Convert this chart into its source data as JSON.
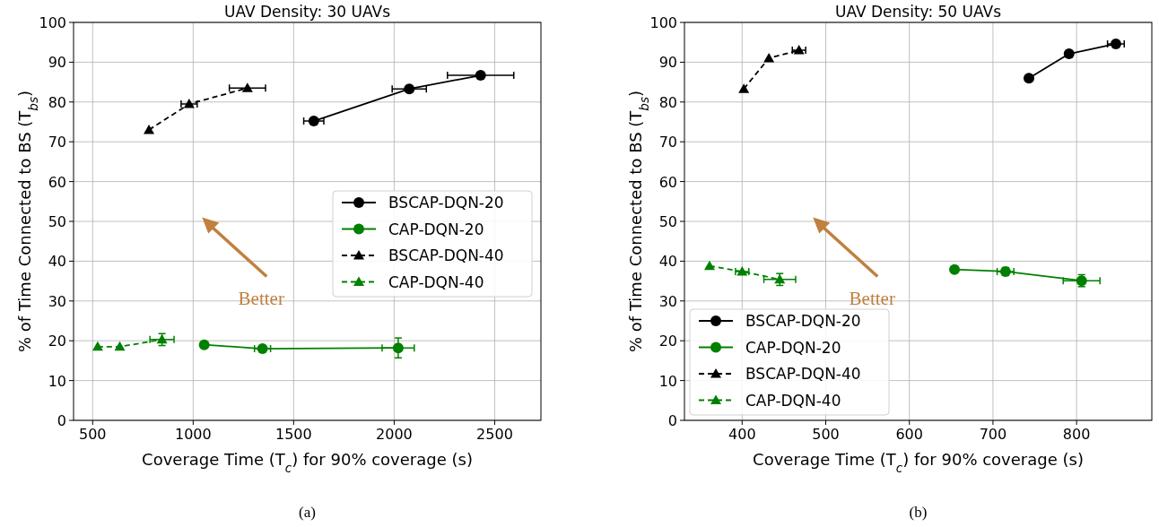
{
  "chart_data": [
    {
      "type": "line",
      "title": "UAV Density: 30 UAVs",
      "xlabel": "Coverage Time (T$_{c}$) for 90% coverage (s)",
      "ylabel": "% of Time Connected to BS (T$_{bs}$)",
      "xlim": [
        405,
        2730
      ],
      "ylim": [
        0,
        100
      ],
      "xticks": [
        500,
        1000,
        1500,
        2000,
        2500
      ],
      "yticks": [
        0,
        10,
        20,
        30,
        40,
        50,
        60,
        70,
        80,
        90,
        100
      ],
      "grid": true,
      "legend": "right",
      "annotations": [
        "Better",
        "(a)"
      ],
      "series": [
        {
          "name": "BSCAP-DQN-20",
          "color": "#000000",
          "marker": "circle",
          "line_style": "solid",
          "x": [
            1600,
            2075,
            2430
          ],
          "values": [
            75.2,
            83.3,
            86.7
          ],
          "xerrors": [
            50,
            85,
            165
          ]
        },
        {
          "name": "CAP-DQN-20",
          "color": "#008000",
          "marker": "circle",
          "line_style": "solid",
          "x": [
            1055,
            1345,
            2020
          ],
          "values": [
            19,
            18,
            18.2
          ],
          "xerrors": [
            null,
            40,
            80
          ],
          "errors": [
            null,
            null,
            2.5
          ]
        },
        {
          "name": "BSCAP-DQN-40",
          "color": "#000000",
          "marker": "triangle",
          "line_style": "dashed",
          "x": [
            780,
            980,
            1270
          ],
          "values": [
            73,
            79.5,
            83.5
          ],
          "xerrors": [
            null,
            40,
            90
          ]
        },
        {
          "name": "CAP-DQN-40",
          "color": "#008000",
          "marker": "triangle",
          "line_style": "dashed",
          "x": [
            525,
            635,
            845
          ],
          "values": [
            18.5,
            18.5,
            20.3
          ],
          "xerrors": [
            null,
            null,
            60
          ],
          "errors": [
            null,
            null,
            1.5
          ]
        }
      ]
    },
    {
      "type": "line",
      "title": "UAV Density: 50 UAVs",
      "xlabel": "Coverage Time (T$_{c}$) for 90% coverage (s)",
      "ylabel": "% of Time Connected to BS (T$_{bs}$)",
      "xlim": [
        331,
        890
      ],
      "ylim": [
        0,
        100
      ],
      "xticks": [
        400,
        500,
        600,
        700,
        800
      ],
      "yticks": [
        0,
        10,
        20,
        30,
        40,
        50,
        60,
        70,
        80,
        90,
        100
      ],
      "grid": true,
      "legend": "bottom left",
      "annotations": [
        "Better",
        "(b)"
      ],
      "series": [
        {
          "name": "BSCAP-DQN-20",
          "color": "#000000",
          "marker": "circle",
          "line_style": "solid",
          "x": [
            743,
            791,
            847
          ],
          "values": [
            86,
            92.1,
            94.6
          ],
          "xerrors": [
            null,
            null,
            10
          ]
        },
        {
          "name": "CAP-DQN-20",
          "color": "#008000",
          "marker": "circle",
          "line_style": "solid",
          "x": [
            654,
            715,
            806
          ],
          "values": [
            37.9,
            37.4,
            35.1
          ],
          "xerrors": [
            null,
            10,
            22
          ],
          "errors": [
            null,
            1,
            1.5
          ]
        },
        {
          "name": "BSCAP-DQN-40",
          "color": "#000000",
          "marker": "triangle",
          "line_style": "dashed",
          "x": [
            402,
            432,
            468
          ],
          "values": [
            83.3,
            91,
            93
          ],
          "xerrors": [
            null,
            null,
            8
          ]
        },
        {
          "name": "CAP-DQN-40",
          "color": "#008000",
          "marker": "triangle",
          "line_style": "dashed",
          "x": [
            361,
            400,
            445
          ],
          "values": [
            38.8,
            37.4,
            35.4
          ],
          "xerrors": [
            null,
            8,
            19
          ],
          "errors": [
            null,
            null,
            1.5
          ]
        }
      ]
    }
  ]
}
